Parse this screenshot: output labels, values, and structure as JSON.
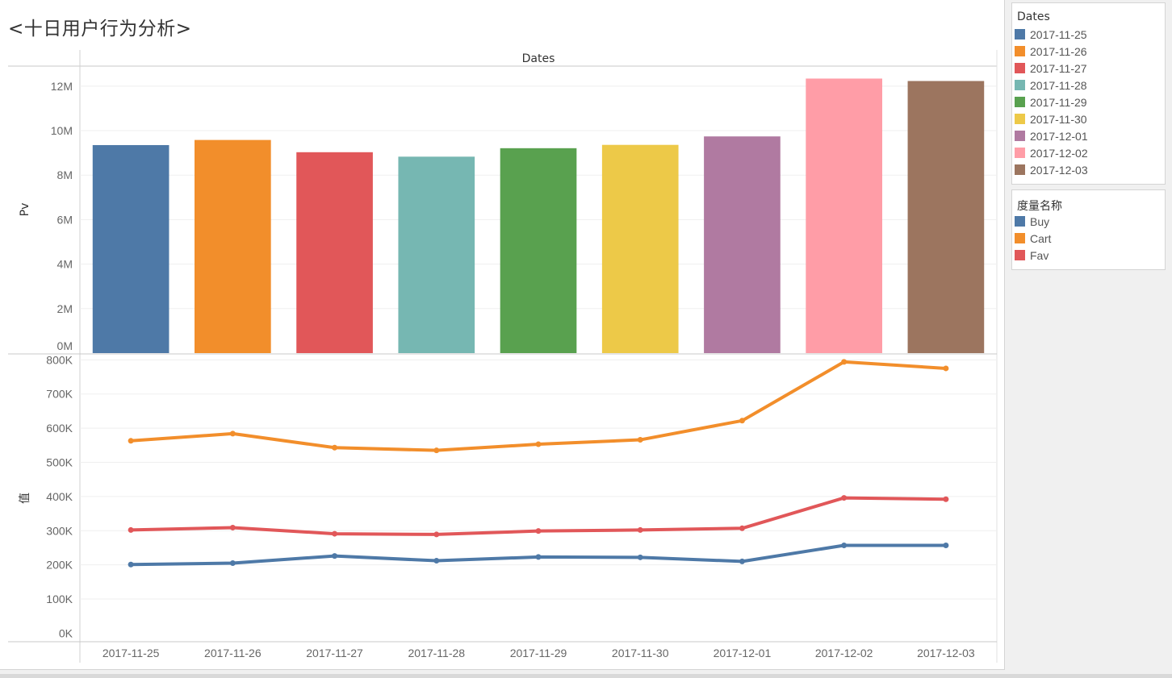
{
  "dashboard": {
    "title": "<十日用户行为分析>"
  },
  "legends": {
    "dates": {
      "title": "Dates",
      "items": [
        {
          "label": "2017-11-25",
          "color": "#4e79a7"
        },
        {
          "label": "2017-11-26",
          "color": "#f28e2b"
        },
        {
          "label": "2017-11-27",
          "color": "#e15759"
        },
        {
          "label": "2017-11-28",
          "color": "#76b7b2"
        },
        {
          "label": "2017-11-29",
          "color": "#59a14f"
        },
        {
          "label": "2017-11-30",
          "color": "#edc948"
        },
        {
          "label": "2017-12-01",
          "color": "#b07aa1"
        },
        {
          "label": "2017-12-02",
          "color": "#ff9da7"
        },
        {
          "label": "2017-12-03",
          "color": "#9c755f"
        }
      ]
    },
    "measures": {
      "title": "度量名称",
      "items": [
        {
          "label": "Buy",
          "color": "#4e79a7"
        },
        {
          "label": "Cart",
          "color": "#f28e2b"
        },
        {
          "label": "Fav",
          "color": "#e15759"
        }
      ]
    }
  },
  "chart_data": [
    {
      "type": "bar",
      "header": "Dates",
      "ylabel": "Pv",
      "categories": [
        "2017-11-25",
        "2017-11-26",
        "2017-11-27",
        "2017-11-28",
        "2017-11-29",
        "2017-11-30",
        "2017-12-01",
        "2017-12-02",
        "2017-12-03"
      ],
      "values": [
        9350000,
        9580000,
        9030000,
        8830000,
        9210000,
        9360000,
        9740000,
        12340000,
        12230000
      ],
      "colors": [
        "#4e79a7",
        "#f28e2b",
        "#e15759",
        "#76b7b2",
        "#59a14f",
        "#edc948",
        "#b07aa1",
        "#ff9da7",
        "#9c755f"
      ],
      "ylim": [
        0,
        12900000
      ],
      "yticks": [
        0,
        2000000,
        4000000,
        6000000,
        8000000,
        10000000,
        12000000
      ],
      "ytick_labels": [
        "0M",
        "2M",
        "4M",
        "6M",
        "8M",
        "10M",
        "12M"
      ],
      "grid": true
    },
    {
      "type": "line",
      "ylabel": "值",
      "categories": [
        "2017-11-25",
        "2017-11-26",
        "2017-11-27",
        "2017-11-28",
        "2017-11-29",
        "2017-11-30",
        "2017-12-01",
        "2017-12-02",
        "2017-12-03"
      ],
      "series": [
        {
          "name": "Cart",
          "color": "#f28e2b",
          "values": [
            563000,
            584000,
            543000,
            535000,
            553000,
            566000,
            622000,
            794000,
            775000
          ]
        },
        {
          "name": "Fav",
          "color": "#e15759",
          "values": [
            302000,
            309000,
            291000,
            289000,
            299000,
            302000,
            307000,
            396000,
            392000
          ]
        },
        {
          "name": "Buy",
          "color": "#4e79a7",
          "values": [
            201000,
            205000,
            226000,
            212000,
            223000,
            222000,
            210000,
            257000,
            257000
          ]
        }
      ],
      "ylim": [
        -25000,
        815000
      ],
      "yticks": [
        0,
        100000,
        200000,
        300000,
        400000,
        500000,
        600000,
        700000,
        800000
      ],
      "ytick_labels": [
        "0K",
        "100K",
        "200K",
        "300K",
        "400K",
        "500K",
        "600K",
        "700K",
        "800K"
      ],
      "grid": true
    }
  ]
}
